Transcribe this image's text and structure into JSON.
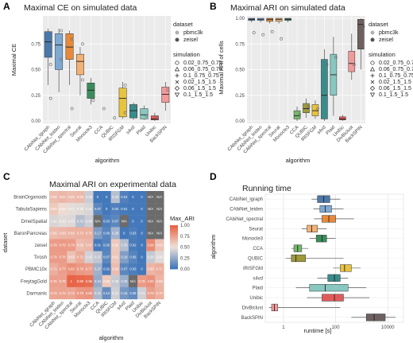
{
  "chart_data": [
    {
      "panel": "A",
      "type": "box",
      "title": "Maximal CE on simulated data",
      "xlabel": "algorithm",
      "ylabel": "Maximal CE",
      "ylim": [
        0,
        1
      ],
      "yticks": [
        "0.00",
        "0.25",
        "0.50",
        "0.75"
      ],
      "categories": [
        "CAbiNet_igraph",
        "CAbiNet_leiden",
        "CAbiNet_spectral",
        "Seurat",
        "Monocle3",
        "CCA",
        "QUBIC",
        "IRISFGM",
        "s4vd",
        "Plaid",
        "Unibic",
        "BackSPIN"
      ],
      "colors": [
        "#4a78a8",
        "#7ea9d3",
        "#e8893a",
        "#f3b275",
        "#3a8c5c",
        "#74b86a",
        "#9e9a3c",
        "#e8c33e",
        "#3a8c8c",
        "#88c8c0",
        "#e05a5a",
        "#f19a9a"
      ],
      "boxes": [
        {
          "q1": 0.62,
          "med": 0.77,
          "q3": 0.87,
          "lo": 0.35,
          "hi": 0.9
        },
        {
          "q1": 0.5,
          "med": 0.74,
          "q3": 0.85,
          "lo": 0.28,
          "hi": 0.9
        },
        {
          "q1": 0.6,
          "med": 0.72,
          "q3": 0.85,
          "lo": 0.35,
          "hi": 0.88
        },
        {
          "q1": 0.45,
          "med": 0.58,
          "q3": 0.65,
          "lo": 0.25,
          "hi": 0.72
        },
        {
          "q1": 0.22,
          "med": 0.3,
          "q3": 0.37,
          "lo": 0.16,
          "hi": 0.42
        },
        null,
        null,
        {
          "q1": 0.04,
          "med": 0.22,
          "q3": 0.32,
          "lo": 0.02,
          "hi": 0.38
        },
        {
          "q1": 0.03,
          "med": 0.1,
          "q3": 0.16,
          "lo": 0.01,
          "hi": 0.18
        },
        {
          "q1": 0.02,
          "med": 0.06,
          "q3": 0.12,
          "lo": 0.01,
          "hi": 0.15
        },
        {
          "q1": 0.01,
          "med": 0.02,
          "q3": 0.05,
          "lo": 0.0,
          "hi": 0.08
        },
        {
          "q1": 0.18,
          "med": 0.26,
          "q3": 0.33,
          "lo": 0.1,
          "hi": 0.38
        }
      ],
      "points": [
        [
          0,
          0.55
        ],
        [
          0,
          0.22
        ],
        [
          1,
          0.6
        ],
        [
          1,
          0.88
        ],
        [
          2,
          0.8
        ],
        [
          2,
          0.12
        ],
        [
          3,
          0.4
        ],
        [
          3,
          0.75
        ],
        [
          4,
          0.2
        ],
        [
          5,
          0.12
        ],
        [
          6,
          0.03
        ],
        [
          7,
          0.08
        ],
        [
          7,
          0.35
        ],
        [
          8,
          0.15
        ],
        [
          9,
          0.05
        ],
        [
          10,
          0.03
        ],
        [
          11,
          0.3
        ]
      ]
    },
    {
      "panel": "B",
      "type": "box",
      "title": "Maximal ARI on simulated data",
      "xlabel": "algorithm",
      "ylabel": "Maximal ARI of cells",
      "ylim": [
        0,
        1
      ],
      "yticks": [
        "0.00",
        "0.25",
        "0.50",
        "0.75",
        "1.00"
      ],
      "categories": [
        "CAbiNet_igraph",
        "CAbiNet_leiden",
        "CAbiNet_spectral",
        "Seurat",
        "Monocle3",
        "CCA",
        "QUBIC",
        "IRISFGM",
        "s4vd",
        "Plaid",
        "Unibic",
        "DivBiclust",
        "BackSPIN"
      ],
      "colors": [
        "#4a78a8",
        "#7ea9d3",
        "#e8893a",
        "#f3b275",
        "#3a8c5c",
        "#74b86a",
        "#9e9a3c",
        "#e8c33e",
        "#3a8c8c",
        "#88c8c0",
        "#e05a5a",
        "#f19a9a",
        "#6e6060"
      ],
      "boxes": [
        {
          "q1": 0.98,
          "med": 0.99,
          "q3": 1.0,
          "lo": 0.96,
          "hi": 1.0
        },
        {
          "q1": 0.98,
          "med": 0.99,
          "q3": 1.0,
          "lo": 0.96,
          "hi": 1.0
        },
        {
          "q1": 0.97,
          "med": 0.99,
          "q3": 1.0,
          "lo": 0.95,
          "hi": 1.0
        },
        {
          "q1": 0.97,
          "med": 0.99,
          "q3": 1.0,
          "lo": 0.95,
          "hi": 1.0
        },
        {
          "q1": 0.98,
          "med": 0.99,
          "q3": 1.0,
          "lo": 0.96,
          "hi": 1.0
        },
        {
          "q1": 0.02,
          "med": 0.05,
          "q3": 0.1,
          "lo": 0.0,
          "hi": 0.14
        },
        {
          "q1": 0.08,
          "med": 0.12,
          "q3": 0.17,
          "lo": 0.03,
          "hi": 0.22
        },
        {
          "q1": 0.05,
          "med": 0.1,
          "q3": 0.16,
          "lo": 0.02,
          "hi": 0.2
        },
        {
          "q1": 0.02,
          "med": 0.25,
          "q3": 0.6,
          "lo": 0.0,
          "hi": 0.7
        },
        {
          "q1": 0.25,
          "med": 0.45,
          "q3": 0.65,
          "lo": 0.05,
          "hi": 0.82
        },
        {
          "q1": 0.01,
          "med": 0.02,
          "q3": 0.04,
          "lo": 0.0,
          "hi": 0.06
        },
        {
          "q1": 0.48,
          "med": 0.56,
          "q3": 0.68,
          "lo": 0.4,
          "hi": 0.85
        },
        {
          "q1": 0.7,
          "med": 0.94,
          "q3": 0.99,
          "lo": 0.5,
          "hi": 1.0
        }
      ],
      "points": [
        [
          0,
          0.86
        ],
        [
          1,
          0.84
        ],
        [
          2,
          0.87
        ],
        [
          3,
          0.8
        ],
        [
          5,
          0.06
        ],
        [
          6,
          0.14
        ],
        [
          7,
          0.12
        ],
        [
          8,
          0.55
        ],
        [
          9,
          0.62
        ],
        [
          11,
          0.55
        ],
        [
          12,
          0.92
        ]
      ]
    },
    {
      "panel": "C",
      "type": "heatmap",
      "title": "Maximal ARI on experimental data",
      "xlabel": "algorithm",
      "ylabel": "dataset",
      "legend_title": "Max_ARI",
      "legend_ticks": [
        "1.00",
        "0.75",
        "0.50",
        "0.25",
        "0.00"
      ],
      "columns": [
        "CAbiNet_igraph",
        "CAbiNet_leiden",
        "CAbiNet_spectral",
        "Seurat",
        "Monocle3",
        "CCA",
        "QUBIC",
        "IRISFGM",
        "s4vd",
        "Plaid",
        "Unibic",
        "DivBiclust",
        "BackSPIN"
      ],
      "rows": [
        "BrainOrganoids",
        "TabulaSapiens",
        "DmelSpatial",
        "BaronPancreas",
        "zeisel",
        "Tirosh",
        "PBMC10x",
        "FreytagGold",
        "Darmanis"
      ],
      "values": [
        [
          0.65,
          0.67,
          0.65,
          0.66,
          0.4,
          0.0,
          0.0,
          0.34,
          0.04,
          0.0,
          0.0,
          null,
          null
        ],
        [
          0.6,
          0.53,
          0.47,
          0.46,
          0.44,
          0.07,
          0.0,
          0.04,
          0.01,
          0.0,
          0.0,
          null,
          null
        ],
        [
          0.44,
          0.46,
          0.45,
          0.33,
          0.4,
          null,
          0.03,
          0.07,
          null,
          0.0,
          0.0,
          null,
          null
        ],
        [
          0.66,
          0.68,
          0.69,
          0.7,
          0.7,
          0.17,
          0.06,
          0.28,
          0.0,
          0.03,
          0.0,
          null,
          null
        ],
        [
          0.78,
          0.79,
          0.78,
          0.65,
          0.67,
          0.01,
          0.05,
          0.6,
          0.33,
          0.02,
          0.0,
          0.84,
          0.63
        ],
        [
          0.78,
          0.78,
          0.63,
          0.72,
          0.42,
          0.37,
          0.07,
          0.61,
          0.18,
          0.06,
          0.0,
          0.38,
          0.46
        ],
        [
          0.71,
          0.77,
          0.83,
          0.79,
          0.77,
          0.27,
          0.02,
          0.65,
          0.07,
          0.03,
          0.0,
          0.68,
          0.71
        ],
        [
          0.76,
          0.76,
          1.0,
          0.98,
          0.96,
          0.24,
          0.6,
          0.38,
          0.26,
          null,
          0.78,
          0.82,
          0.68
        ],
        [
          0.74,
          0.75,
          0.74,
          0.79,
          0.8,
          0.31,
          0.1,
          0.41,
          0.15,
          0.09,
          0.41,
          0.76,
          0.7
        ]
      ],
      "na_label": "N/A"
    },
    {
      "panel": "D",
      "type": "box",
      "title": "Running time",
      "xlabel": "runtime [s]",
      "ylabel": "algorithm",
      "log_x": true,
      "xticks": [
        {
          "v": 1,
          "t": "1"
        },
        {
          "v": 100,
          "t": "100"
        },
        {
          "v": 10000,
          "t": "10000"
        }
      ],
      "categories": [
        "CAbiNet_igraph",
        "CAbiNet_leiden",
        "CAbiNet_spectral",
        "Seurat",
        "Monocle3",
        "CCA",
        "QUBIC",
        "IRISFGM",
        "s4vd",
        "Plaid",
        "Unibic",
        "DivBiclust",
        "BackSPIN"
      ],
      "colors": [
        "#4a78a8",
        "#7ea9d3",
        "#e8893a",
        "#f3b275",
        "#3a8c5c",
        "#74b86a",
        "#9e9a3c",
        "#e8c33e",
        "#3a8c8c",
        "#88c8c0",
        "#e05a5a",
        "#f19a9a",
        "#6e6060"
      ],
      "boxes": [
        {
          "q1": 20,
          "med": 35,
          "q3": 60,
          "lo": 12,
          "hi": 150
        },
        {
          "q1": 25,
          "med": 40,
          "q3": 70,
          "lo": 14,
          "hi": 200
        },
        {
          "q1": 30,
          "med": 55,
          "q3": 100,
          "lo": 15,
          "hi": 500
        },
        {
          "q1": 8,
          "med": 12,
          "q3": 20,
          "lo": 5,
          "hi": 45
        },
        {
          "q1": 18,
          "med": 30,
          "q3": 45,
          "lo": 10,
          "hi": 100
        },
        {
          "q1": 2.5,
          "med": 3.5,
          "q3": 5,
          "lo": 2,
          "hi": 9
        },
        {
          "q1": 2,
          "med": 3,
          "q3": 7,
          "lo": 1.2,
          "hi": 200
        },
        {
          "q1": 150,
          "med": 220,
          "q3": 400,
          "lo": 80,
          "hi": 900
        },
        {
          "q1": 50,
          "med": 90,
          "q3": 150,
          "lo": 20,
          "hi": 300
        },
        {
          "q1": 10,
          "med": 40,
          "q3": 300,
          "lo": 3,
          "hi": 1500
        },
        {
          "q1": 30,
          "med": 90,
          "q3": 200,
          "lo": 8,
          "hi": 2000
        },
        {
          "q1": 0.35,
          "med": 0.45,
          "q3": 0.6,
          "lo": 0.28,
          "hi": 150
        },
        {
          "q1": 1500,
          "med": 3000,
          "q3": 8000,
          "lo": 400,
          "hi": 20000
        }
      ]
    }
  ],
  "legend": {
    "dataset_title": "dataset",
    "dataset_items": [
      "pbmc3k",
      "zeisel"
    ],
    "dataset_colors": [
      "#b0b0b0",
      "#555555"
    ],
    "simulation_title": "simulation",
    "simulation_items": [
      "0.02_0.75_0.75",
      "0.06_0.75_0.75",
      "0.1_0.75_0.75",
      "0.02_1.5_1.5",
      "0.06_1.5_1.5",
      "0.1_1.5_1.5"
    ],
    "simulation_symbols": [
      "circle",
      "triangle",
      "plus",
      "cross",
      "diamond",
      "triangle-down"
    ]
  }
}
